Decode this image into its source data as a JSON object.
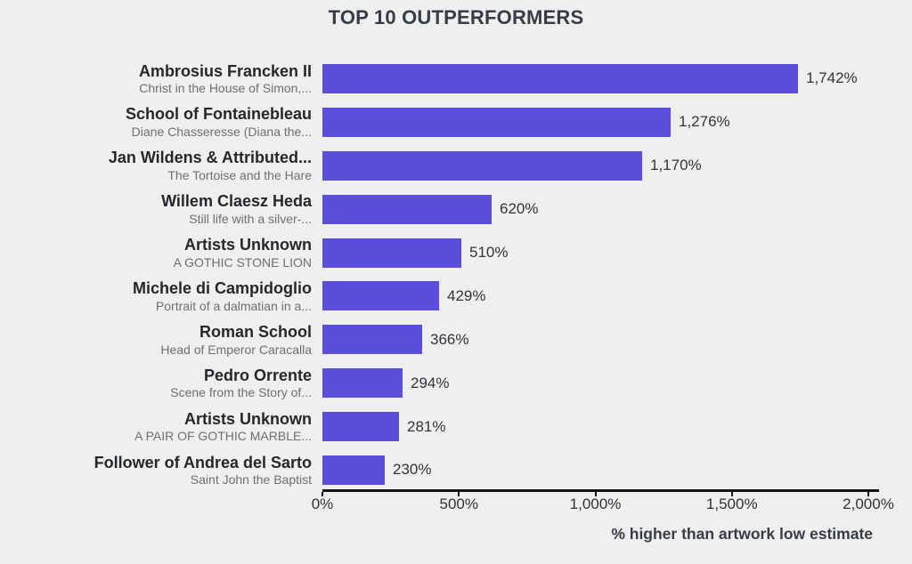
{
  "title": "TOP 10 OUTPERFORMERS",
  "colors": {
    "bg": "#efeff0",
    "bar": "#5b4edb",
    "title_text": "#363d44",
    "artist_text": "#25282b",
    "subtitle_text": "#6e6f71",
    "value_text": "#303438",
    "tick_text": "#2e3236",
    "axis": "#121417"
  },
  "chart_data": {
    "type": "bar",
    "orientation": "horizontal",
    "title": "TOP 10 OUTPERFORMERS",
    "xlabel": "% higher than artwork low estimate",
    "ylabel": "",
    "xlim": [
      0,
      2000
    ],
    "x_ticks": [
      "0%",
      "500%",
      "1,000%",
      "1,500%",
      "2,000%"
    ],
    "x_tick_values": [
      0,
      500,
      1000,
      1500,
      2000
    ],
    "grid": false,
    "legend": false,
    "bars": [
      {
        "artist": "Ambrosius Francken II",
        "artwork": "Christ in the House of Simon,...",
        "value": 1742,
        "value_label": "1,742%"
      },
      {
        "artist": "School of Fontainebleau",
        "artwork": "Diane Chasseresse (Diana the...",
        "value": 1276,
        "value_label": "1,276%"
      },
      {
        "artist": "Jan Wildens & Attributed...",
        "artwork": "The Tortoise and the Hare",
        "value": 1170,
        "value_label": "1,170%"
      },
      {
        "artist": "Willem Claesz Heda",
        "artwork": "Still life with a silver-...",
        "value": 620,
        "value_label": "620%"
      },
      {
        "artist": "Artists Unknown",
        "artwork": "A GOTHIC STONE LION",
        "value": 510,
        "value_label": "510%"
      },
      {
        "artist": "Michele di Campidoglio",
        "artwork": "Portrait of a dalmatian in a...",
        "value": 429,
        "value_label": "429%"
      },
      {
        "artist": "Roman School",
        "artwork": "Head of Emperor Caracalla",
        "value": 366,
        "value_label": "366%"
      },
      {
        "artist": "Pedro Orrente",
        "artwork": "Scene from the Story of...",
        "value": 294,
        "value_label": "294%"
      },
      {
        "artist": "Artists Unknown",
        "artwork": "A PAIR OF GOTHIC MARBLE...",
        "value": 281,
        "value_label": "281%"
      },
      {
        "artist": "Follower of Andrea del Sarto",
        "artwork": "Saint John the Baptist",
        "value": 230,
        "value_label": "230%"
      }
    ]
  }
}
